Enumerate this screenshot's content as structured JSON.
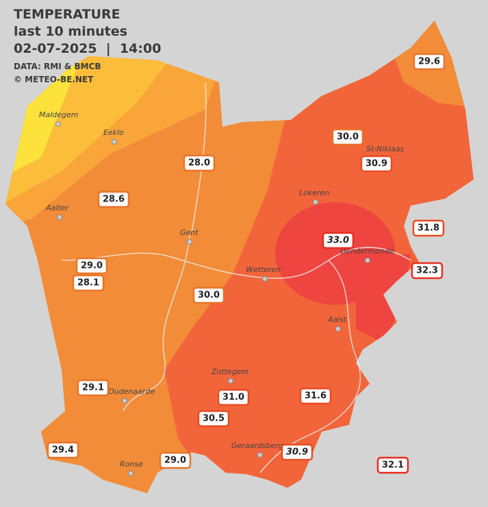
{
  "header": {
    "title": "TEMPERATURE",
    "period": "last 10 minutes",
    "datetime": "02-07-2025  |  14:00",
    "source": "DATA: RMI & BMCB",
    "copyright": "© METEO-BE.NET"
  },
  "cities": [
    {
      "name": "Maldegem"
    },
    {
      "name": "Eeklo"
    },
    {
      "name": "Aalter"
    },
    {
      "name": "Gent"
    },
    {
      "name": "Lokeren"
    },
    {
      "name": "St-Niklaas"
    },
    {
      "name": "Dendermonde"
    },
    {
      "name": "Wetteren"
    },
    {
      "name": "Aalst"
    },
    {
      "name": "Zottegem"
    },
    {
      "name": "Oudenaarde"
    },
    {
      "name": "Geraardsbergen"
    },
    {
      "name": "Ronse"
    }
  ],
  "readings": [
    "29.6",
    "30.0",
    "30.9",
    "28.0",
    "28.6",
    "31.8",
    "33.0",
    "32.3",
    "29.0",
    "28.1",
    "30.0",
    "29.1",
    "31.0",
    "31.6",
    "30.5",
    "30.9",
    "29.4",
    "29.0",
    "32.1"
  ]
}
